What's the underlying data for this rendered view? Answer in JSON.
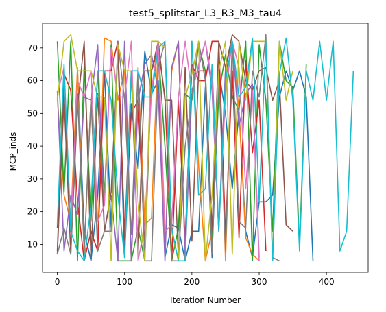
{
  "chart_data": {
    "type": "line",
    "title": "test5_splitstar_L3_R3_M3_tau4",
    "xlabel": "Iteration Number",
    "ylabel": "MCP_inds",
    "xlim": [
      -22,
      462
    ],
    "ylim": [
      1.5,
      77.5
    ],
    "xticks": [
      0,
      100,
      200,
      300,
      400
    ],
    "xtick_labels": [
      "0",
      "100",
      "200",
      "300",
      "400"
    ],
    "yticks": [
      10,
      20,
      30,
      40,
      50,
      60,
      70
    ],
    "ytick_labels": [
      "10",
      "20",
      "30",
      "40",
      "50",
      "60",
      "70"
    ],
    "grid": false,
    "legend": "none",
    "series": [
      {
        "color": "#1f77b4",
        "x": [
          0,
          10,
          20,
          30,
          40,
          50,
          60,
          70,
          80,
          90,
          100,
          110,
          120,
          130,
          140,
          150,
          160,
          170,
          180,
          190,
          200,
          210,
          220,
          230,
          240,
          250,
          260,
          270,
          280,
          290,
          300,
          310,
          320,
          330,
          340,
          350,
          360,
          370,
          380
        ],
        "y": [
          15,
          56,
          15,
          63,
          14,
          5,
          25,
          63,
          15,
          72,
          6,
          53,
          33,
          69,
          56,
          60,
          6,
          16,
          15,
          5,
          14,
          14,
          58,
          6,
          63,
          50,
          27,
          51,
          14,
          6,
          23,
          23,
          25,
          55,
          63,
          57,
          63,
          55,
          5
        ]
      },
      {
        "color": "#ff7f0e",
        "x": [
          0,
          10,
          20,
          30,
          40,
          50,
          60,
          70,
          80,
          90,
          100,
          110,
          120,
          130,
          140,
          150,
          160,
          170,
          180,
          190,
          200,
          210,
          220,
          230,
          240,
          250,
          260,
          270,
          280,
          290,
          300
        ],
        "y": [
          55,
          25,
          17,
          64,
          7,
          55,
          11,
          73,
          72,
          54,
          63,
          5,
          63,
          16,
          18,
          72,
          7,
          63,
          72,
          5,
          72,
          34,
          5,
          14,
          70,
          5,
          71,
          51,
          12,
          7,
          5
        ]
      },
      {
        "color": "#2ca02c",
        "x": [
          0,
          10,
          20,
          30,
          40,
          50,
          60,
          70,
          80,
          90,
          100,
          110,
          120,
          130,
          140,
          150,
          160,
          170,
          180,
          190,
          200,
          210,
          220,
          230,
          240,
          250,
          260,
          270,
          280,
          290,
          300,
          310,
          320,
          330,
          340,
          350,
          360,
          370
        ],
        "y": [
          72,
          26,
          72,
          5,
          65,
          17,
          63,
          25,
          71,
          5,
          5,
          5,
          15,
          5,
          63,
          70,
          40,
          5,
          15,
          56,
          54,
          71,
          63,
          11,
          56,
          68,
          55,
          51,
          72,
          5,
          71,
          54,
          14,
          72,
          60,
          58,
          10,
          65
        ]
      },
      {
        "color": "#d62728",
        "x": [
          0,
          10,
          20,
          30,
          40,
          50,
          60,
          70,
          80,
          90,
          100,
          110,
          120,
          130,
          140,
          150,
          160,
          170,
          180,
          190,
          200,
          210,
          220,
          230,
          240,
          250,
          260,
          270,
          280,
          290,
          300,
          310
        ],
        "y": [
          8,
          62,
          57,
          23,
          5,
          14,
          8,
          63,
          63,
          72,
          14,
          50,
          54,
          9,
          63,
          70,
          55,
          5,
          54,
          11,
          65,
          60,
          60,
          72,
          72,
          13,
          63,
          12,
          66,
          38,
          54,
          8
        ]
      },
      {
        "color": "#9467bd",
        "x": [
          0,
          10,
          20,
          30,
          40,
          50,
          60,
          70,
          80,
          90,
          100,
          110,
          120,
          130,
          140,
          150,
          160,
          170,
          180,
          190,
          200,
          210,
          220,
          230,
          240,
          250,
          260,
          270,
          280,
          290,
          300
        ],
        "y": [
          57,
          8,
          25,
          19,
          55,
          54,
          71,
          14,
          25,
          5,
          72,
          5,
          54,
          65,
          68,
          57,
          5,
          64,
          72,
          6,
          57,
          64,
          72,
          57,
          14,
          64,
          72,
          46,
          56,
          59,
          6
        ]
      },
      {
        "color": "#8c564b",
        "x": [
          0,
          10,
          20,
          30,
          40,
          50,
          60,
          70,
          80,
          90,
          100,
          110,
          120,
          130,
          140,
          150,
          160,
          170,
          180,
          190,
          200,
          210,
          220,
          230,
          240,
          250,
          260,
          270,
          280,
          290,
          300,
          310,
          320,
          330,
          340,
          350
        ],
        "y": [
          7,
          55,
          7,
          52,
          72,
          5,
          56,
          14,
          26,
          68,
          11,
          63,
          7,
          63,
          63,
          72,
          54,
          54,
          6,
          64,
          11,
          63,
          63,
          14,
          72,
          64,
          74,
          72,
          60,
          57,
          63,
          64,
          54,
          60,
          16,
          14
        ]
      },
      {
        "color": "#e377c2",
        "x": [
          0,
          10,
          20,
          30,
          40,
          50,
          60,
          70,
          80,
          90,
          100,
          110,
          120,
          130,
          140,
          150,
          160,
          170,
          180,
          190,
          200,
          210,
          220,
          230,
          240,
          250,
          260,
          270,
          280,
          290,
          300
        ],
        "y": [
          56,
          64,
          14,
          60,
          55,
          63,
          17,
          22,
          70,
          55,
          55,
          72,
          5,
          16,
          57,
          72,
          14,
          16,
          55,
          72,
          56,
          65,
          72,
          60,
          14,
          56,
          72,
          64,
          27,
          57,
          5
        ]
      },
      {
        "color": "#7f7f7f",
        "x": [
          0,
          10,
          20,
          30,
          40,
          50,
          60,
          70,
          80,
          90,
          100,
          110,
          120,
          130,
          140,
          150,
          160,
          170,
          180,
          190,
          200,
          210,
          220,
          230,
          240,
          250,
          260,
          270,
          280,
          290,
          300,
          310,
          320,
          330
        ],
        "y": [
          7,
          15,
          7,
          56,
          8,
          55,
          8,
          14,
          14,
          72,
          54,
          13,
          64,
          5,
          5,
          64,
          72,
          5,
          5,
          40,
          55,
          72,
          60,
          7,
          63,
          8,
          72,
          17,
          15,
          63,
          55,
          74,
          6,
          5
        ]
      },
      {
        "color": "#bcbd22",
        "x": [
          0,
          10,
          20,
          30,
          40,
          50,
          60,
          70,
          80,
          90,
          100,
          110,
          120,
          130,
          140,
          150,
          160,
          170,
          180,
          190,
          200,
          210,
          220,
          230,
          240,
          250,
          260,
          270,
          280,
          290,
          300,
          310,
          320,
          330,
          340,
          350
        ],
        "y": [
          54,
          72,
          74,
          63,
          63,
          63,
          55,
          55,
          5,
          71,
          63,
          63,
          23,
          5,
          72,
          72,
          70,
          14,
          5,
          55,
          62,
          72,
          5,
          25,
          63,
          72,
          7,
          72,
          54,
          72,
          72,
          72,
          5,
          72,
          54,
          63
        ]
      },
      {
        "color": "#17becf",
        "x": [
          0,
          10,
          20,
          30,
          40,
          50,
          60,
          70,
          80,
          90,
          100,
          110,
          120,
          130,
          140,
          150,
          160,
          170,
          180,
          190,
          200,
          210,
          220,
          230,
          240,
          250,
          260,
          270,
          280,
          290,
          300,
          310,
          320,
          330,
          340,
          350,
          360,
          370,
          380,
          390,
          400,
          410,
          420,
          430,
          440
        ],
        "y": [
          16,
          65,
          14,
          8,
          5,
          22,
          63,
          63,
          54,
          25,
          6,
          63,
          63,
          55,
          55,
          70,
          72,
          15,
          5,
          5,
          72,
          25,
          27,
          65,
          14,
          60,
          72,
          55,
          58,
          73,
          23,
          72,
          5,
          62,
          73,
          54,
          8,
          63,
          54,
          72,
          54,
          72,
          8,
          14,
          63
        ]
      }
    ]
  }
}
